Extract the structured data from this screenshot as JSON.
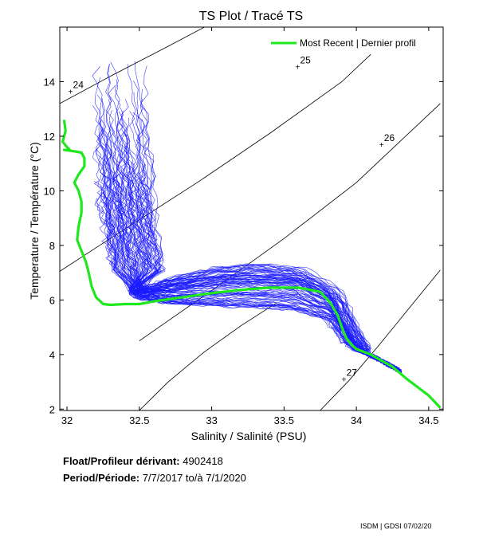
{
  "chart_data": {
    "type": "scatter",
    "title": "TS Plot / Tracé TS",
    "xlabel": "Salinity / Salinité (PSU)",
    "ylabel": "Temperature / Température (°C)",
    "xlim": [
      31.95,
      34.6
    ],
    "ylim": [
      1.95,
      16.0
    ],
    "x_ticks": [
      "32",
      "32.5",
      "33",
      "33.5",
      "34",
      "34.5"
    ],
    "x_tick_values": [
      32,
      32.5,
      33,
      33.5,
      34,
      34.5
    ],
    "y_ticks": [
      "2",
      "4",
      "6",
      "8",
      "10",
      "12",
      "14"
    ],
    "y_tick_values": [
      2,
      4,
      6,
      8,
      10,
      12,
      14
    ],
    "grid": false,
    "legend_position": "top-right",
    "density_contours": [
      {
        "label": "24",
        "label_x": 32.03,
        "label_y": 13.65,
        "line": [
          [
            31.95,
            13.2
          ],
          [
            32.3,
            14.2
          ],
          [
            32.7,
            15.3
          ],
          [
            32.95,
            16.0
          ]
        ]
      },
      {
        "label": "25",
        "label_x": 33.6,
        "label_y": 14.55,
        "line": [
          [
            31.95,
            7.05
          ],
          [
            32.4,
            8.6
          ],
          [
            32.9,
            10.3
          ],
          [
            33.4,
            12.1
          ],
          [
            33.9,
            14.0
          ],
          [
            34.1,
            15.0
          ]
        ]
      },
      {
        "label": "26",
        "label_x": 34.18,
        "label_y": 11.7,
        "line": [
          [
            32.5,
            4.5
          ],
          [
            33.0,
            6.35
          ],
          [
            33.5,
            8.25
          ],
          [
            34.0,
            10.3
          ],
          [
            34.3,
            11.8
          ],
          [
            34.58,
            13.2
          ]
        ]
      },
      {
        "label": "27",
        "label_x": 33.92,
        "label_y": 3.1,
        "line": [
          [
            33.75,
            1.95
          ],
          [
            33.95,
            3.05
          ],
          [
            34.15,
            4.3
          ],
          [
            34.35,
            5.6
          ],
          [
            34.58,
            7.1
          ]
        ]
      },
      {
        "label": "",
        "label_x": null,
        "label_y": null,
        "line": [
          [
            32.5,
            1.95
          ],
          [
            32.7,
            3.0
          ],
          [
            32.95,
            4.1
          ],
          [
            33.2,
            5.05
          ],
          [
            33.45,
            5.9
          ]
        ]
      }
    ],
    "series": [
      {
        "name": "Most Recent | Dernier profil",
        "color": "#1fe81f",
        "x": [
          31.98,
          31.99,
          31.97,
          32.0,
          32.02,
          31.98,
          32.05,
          32.1,
          32.12,
          32.12,
          32.08,
          32.05,
          32.08,
          32.1,
          32.1,
          32.08,
          32.07,
          32.1,
          32.13,
          32.15,
          32.17,
          32.2,
          32.25,
          32.3,
          32.4,
          32.5,
          32.6,
          32.8,
          33.0,
          33.2,
          33.4,
          33.6,
          33.75,
          33.82,
          33.87,
          33.9,
          33.93,
          33.97,
          34.0,
          34.05,
          34.1,
          34.15,
          34.25,
          34.35,
          34.5,
          34.58
        ],
        "y": [
          12.6,
          12.2,
          11.8,
          11.6,
          11.5,
          11.5,
          11.45,
          11.4,
          11.2,
          10.9,
          10.6,
          10.3,
          10.0,
          9.6,
          9.2,
          8.7,
          8.2,
          7.8,
          7.4,
          7.0,
          6.5,
          6.1,
          5.85,
          5.82,
          5.85,
          5.85,
          5.95,
          6.1,
          6.25,
          6.37,
          6.45,
          6.45,
          6.3,
          5.9,
          5.45,
          5.0,
          4.6,
          4.35,
          4.2,
          4.1,
          4.0,
          3.85,
          3.55,
          3.1,
          2.5,
          2.05
        ]
      }
    ],
    "profile_density_note": "Dense envelope of historical profiles from 7/7/2017 to 7/1/2020 (blue)",
    "historical_color": "#1a1aff"
  },
  "legend": {
    "label": "Most Recent | Dernier profil"
  },
  "info": {
    "float_label": "Float/Profileur dérivant:",
    "float_value": "4902418",
    "period_label": "Period/Période:",
    "period_value": "7/7/2017  to/à  7/1/2020"
  },
  "footer": "ISDM | GDSI  07/02/20"
}
